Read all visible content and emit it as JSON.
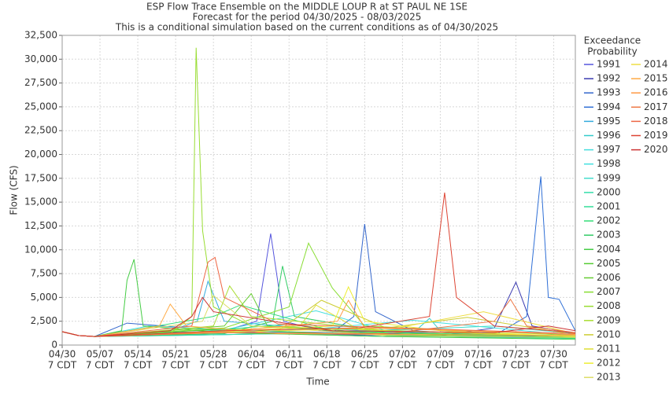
{
  "chart_data": {
    "type": "line",
    "title": "ESP Flow Trace Ensemble on the MIDDLE LOUP R at ST PAUL NE 1SE",
    "subtitle": [
      "Forecast for the period 04/30/2025 - 08/03/2025",
      "This is a conditional simulation based on the current conditions as of 04/30/2025"
    ],
    "x_label": "Time",
    "y_label": "Flow (CFS)",
    "legend_title": [
      "Exceedance",
      "Probability"
    ],
    "grid": true,
    "xlim": [
      0,
      95
    ],
    "ylim": [
      0,
      32500
    ],
    "xticks": [
      {
        "value": 0,
        "label": [
          "04/30",
          "7 CDT"
        ]
      },
      {
        "value": 7,
        "label": [
          "05/07",
          "7 CDT"
        ]
      },
      {
        "value": 14,
        "label": [
          "05/14",
          "7 CDT"
        ]
      },
      {
        "value": 21,
        "label": [
          "05/21",
          "7 CDT"
        ]
      },
      {
        "value": 28,
        "label": [
          "05/28",
          "7 CDT"
        ]
      },
      {
        "value": 35,
        "label": [
          "06/04",
          "7 CDT"
        ]
      },
      {
        "value": 42,
        "label": [
          "06/11",
          "7 CDT"
        ]
      },
      {
        "value": 49,
        "label": [
          "06/18",
          "7 CDT"
        ]
      },
      {
        "value": 56,
        "label": [
          "06/25",
          "7 CDT"
        ]
      },
      {
        "value": 63,
        "label": [
          "07/02",
          "7 CDT"
        ]
      },
      {
        "value": 70,
        "label": [
          "07/09",
          "7 CDT"
        ]
      },
      {
        "value": 77,
        "label": [
          "07/16",
          "7 CDT"
        ]
      },
      {
        "value": 84,
        "label": [
          "07/23",
          "7 CDT"
        ]
      },
      {
        "value": 91,
        "label": [
          "07/30",
          "7 CDT"
        ]
      }
    ],
    "yticks": [
      0,
      {
        "value": 2500,
        "label": "2,500"
      },
      {
        "value": 5000,
        "label": "5,000"
      },
      {
        "value": 7500,
        "label": "7,500"
      },
      {
        "value": 10000,
        "label": "10,000"
      },
      {
        "value": 12500,
        "label": "12,500"
      },
      {
        "value": 15000,
        "label": "15,000"
      },
      {
        "value": 17500,
        "label": "17,500"
      },
      {
        "value": 20000,
        "label": "20,000"
      },
      {
        "value": 22500,
        "label": "22,500"
      },
      {
        "value": 25000,
        "label": "25,000"
      },
      {
        "value": 27500,
        "label": "27,500"
      },
      {
        "value": 30000,
        "label": "30,000"
      },
      {
        "value": 32500,
        "label": "32,500"
      }
    ],
    "series": [
      {
        "name": "1991",
        "color": "#5555dd",
        "x": [
          0,
          3,
          6,
          20,
          30,
          36,
          38.6,
          41,
          48,
          60,
          75,
          95
        ],
        "values": [
          1400,
          1000,
          900,
          1200,
          1500,
          2500,
          11700,
          2500,
          1500,
          1200,
          900,
          700
        ]
      },
      {
        "name": "1992",
        "color": "#3a3ab0",
        "x": [
          0,
          3,
          6,
          15,
          30,
          50,
          70,
          80,
          84,
          87,
          95
        ],
        "values": [
          1400,
          1000,
          900,
          1300,
          1400,
          1100,
          1000,
          1800,
          6600,
          2000,
          1200
        ]
      },
      {
        "name": "1993",
        "color": "#3366cc",
        "x": [
          0,
          3,
          6,
          12,
          30,
          50,
          54,
          56,
          58,
          65,
          80,
          95
        ],
        "values": [
          1400,
          1000,
          900,
          2300,
          1500,
          1300,
          3000,
          12700,
          3500,
          1500,
          1000,
          800
        ]
      },
      {
        "name": "1994",
        "color": "#2f6fd6",
        "x": [
          0,
          3,
          6,
          20,
          40,
          60,
          80,
          86,
          88.6,
          90,
          92,
          95
        ],
        "values": [
          1400,
          1000,
          900,
          1000,
          1200,
          900,
          1000,
          3000,
          17700,
          5000,
          4800,
          1500
        ]
      },
      {
        "name": "1995",
        "color": "#33aadd",
        "x": [
          0,
          3,
          6,
          20,
          25,
          27,
          30,
          45,
          70,
          95
        ],
        "values": [
          1400,
          1000,
          900,
          1500,
          2500,
          6700,
          2500,
          1800,
          1200,
          900
        ]
      },
      {
        "name": "1996",
        "color": "#33cccc",
        "x": [
          0,
          3,
          6,
          30,
          50,
          66,
          68,
          70,
          95
        ],
        "values": [
          1400,
          1000,
          900,
          1500,
          1200,
          1800,
          2800,
          1500,
          800
        ]
      },
      {
        "name": "1997",
        "color": "#44dddd",
        "x": [
          0,
          3,
          6,
          16,
          30,
          47,
          60,
          95
        ],
        "values": [
          1400,
          1000,
          900,
          2000,
          1600,
          3600,
          1500,
          900
        ]
      },
      {
        "name": "1998",
        "color": "#44e0e0",
        "x": [
          0,
          3,
          6,
          25,
          45,
          65,
          95
        ],
        "values": [
          1400,
          1000,
          900,
          1300,
          1600,
          2600,
          1000
        ]
      },
      {
        "name": "1999",
        "color": "#44ddcc",
        "x": [
          0,
          3,
          6,
          30,
          50,
          80,
          95
        ],
        "values": [
          1400,
          1000,
          900,
          1100,
          1300,
          2000,
          1200
        ]
      },
      {
        "name": "2000",
        "color": "#33ddaa",
        "x": [
          0,
          3,
          6,
          20,
          40,
          60,
          95
        ],
        "values": [
          1400,
          1000,
          900,
          1000,
          1200,
          900,
          700
        ]
      },
      {
        "name": "2001",
        "color": "#33dd99",
        "x": [
          0,
          3,
          6,
          25,
          42,
          58,
          95
        ],
        "values": [
          1400,
          1000,
          900,
          1400,
          2200,
          1100,
          800
        ]
      },
      {
        "name": "2002",
        "color": "#33dd77",
        "x": [
          0,
          3,
          6,
          28,
          33,
          50,
          95
        ],
        "values": [
          1400,
          1000,
          900,
          3000,
          4200,
          1500,
          700
        ]
      },
      {
        "name": "2003",
        "color": "#33cc66",
        "x": [
          0,
          3,
          6,
          30,
          39,
          40.8,
          43,
          60,
          95
        ],
        "values": [
          1400,
          1000,
          900,
          1200,
          2500,
          8300,
          3000,
          1300,
          900
        ]
      },
      {
        "name": "2004",
        "color": "#44cc44",
        "x": [
          0,
          3,
          6,
          11,
          12,
          13.3,
          15,
          30,
          60,
          95
        ],
        "values": [
          1400,
          1000,
          900,
          1500,
          6800,
          9000,
          2000,
          1300,
          900,
          600
        ]
      },
      {
        "name": "2005",
        "color": "#55cc33",
        "x": [
          0,
          3,
          6,
          30,
          50,
          70,
          95
        ],
        "values": [
          1400,
          1000,
          900,
          1700,
          1200,
          1000,
          800
        ]
      },
      {
        "name": "2006",
        "color": "#66cc33",
        "x": [
          0,
          3,
          6,
          30,
          35,
          38,
          55,
          95
        ],
        "values": [
          1400,
          1000,
          900,
          2000,
          5400,
          2000,
          1300,
          900
        ]
      },
      {
        "name": "2007",
        "color": "#88dd33",
        "x": [
          0,
          3,
          6,
          30,
          42,
          45.6,
          50,
          56,
          95
        ],
        "values": [
          1400,
          1000,
          900,
          1800,
          4000,
          10700,
          6000,
          2000,
          1000
        ]
      },
      {
        "name": "2008",
        "color": "#99dd33",
        "x": [
          0,
          3,
          6,
          20,
          24,
          24.8,
          26,
          28,
          35,
          95
        ],
        "values": [
          1400,
          1000,
          900,
          1200,
          3000,
          31200,
          12000,
          4000,
          2000,
          900
        ]
      },
      {
        "name": "2009",
        "color": "#aadd33",
        "x": [
          0,
          3,
          6,
          28,
          31,
          35,
          60,
          95
        ],
        "values": [
          1400,
          1000,
          900,
          2000,
          6200,
          3000,
          1500,
          900
        ]
      },
      {
        "name": "2010",
        "color": "#cccc33",
        "x": [
          0,
          3,
          6,
          40,
          48,
          60,
          75,
          95
        ],
        "values": [
          1400,
          1000,
          900,
          1500,
          4700,
          1800,
          2900,
          1100
        ]
      },
      {
        "name": "2011",
        "color": "#dddd33",
        "x": [
          0,
          3,
          6,
          20,
          44,
          47,
          55,
          95
        ],
        "values": [
          1400,
          1000,
          900,
          1200,
          2000,
          4200,
          1600,
          900
        ]
      },
      {
        "name": "2012",
        "color": "#eeee33",
        "x": [
          0,
          3,
          6,
          30,
          50,
          53,
          56,
          70,
          95
        ],
        "values": [
          1400,
          1000,
          900,
          1400,
          2000,
          6100,
          2500,
          1500,
          900
        ]
      },
      {
        "name": "2013",
        "color": "#dddd66",
        "x": [
          0,
          3,
          6,
          26,
          28,
          35,
          60,
          95
        ],
        "values": [
          1400,
          1000,
          900,
          2500,
          5200,
          2000,
          1000,
          800
        ]
      },
      {
        "name": "2014",
        "color": "#eedd44",
        "x": [
          0,
          3,
          6,
          40,
          62,
          78,
          95
        ],
        "values": [
          1400,
          1000,
          900,
          1500,
          1800,
          3500,
          1200
        ]
      },
      {
        "name": "2015",
        "color": "#ffaa44",
        "x": [
          0,
          3,
          6,
          18,
          20,
          23,
          40,
          95
        ],
        "values": [
          1400,
          1000,
          900,
          2000,
          4300,
          2000,
          1200,
          1000
        ]
      },
      {
        "name": "2016",
        "color": "#ff9944",
        "x": [
          0,
          3,
          6,
          30,
          51,
          53,
          56,
          80,
          95
        ],
        "values": [
          1400,
          1000,
          900,
          1400,
          2500,
          4700,
          1800,
          1400,
          1100
        ]
      },
      {
        "name": "2017",
        "color": "#ee7744",
        "x": [
          0,
          3,
          6,
          30,
          60,
          80,
          83,
          86,
          95
        ],
        "values": [
          1400,
          1000,
          900,
          1300,
          1200,
          2500,
          4800,
          2000,
          1300
        ]
      },
      {
        "name": "2018",
        "color": "#ee6644",
        "x": [
          0,
          3,
          6,
          24,
          27,
          28.3,
          30,
          40,
          95
        ],
        "values": [
          1400,
          1000,
          900,
          2000,
          8700,
          9200,
          5000,
          2200,
          1200
        ]
      },
      {
        "name": "2019",
        "color": "#dd4433",
        "x": [
          0,
          3,
          6,
          30,
          55,
          68,
          70.8,
          73,
          80,
          95
        ],
        "values": [
          1400,
          1000,
          900,
          1500,
          1800,
          3000,
          16000,
          5000,
          2000,
          1300
        ]
      },
      {
        "name": "2020",
        "color": "#cc3333",
        "x": [
          0,
          3,
          6,
          20,
          24,
          26,
          28,
          50,
          80,
          90,
          95
        ],
        "values": [
          1400,
          1000,
          900,
          1500,
          3000,
          5000,
          3500,
          1500,
          1300,
          2000,
          1500
        ]
      }
    ]
  }
}
